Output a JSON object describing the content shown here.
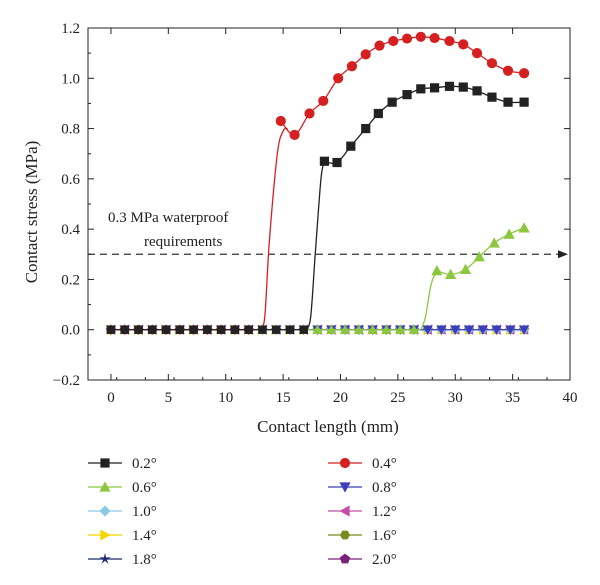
{
  "chart_data": {
    "type": "line",
    "xlabel": "Contact length (mm)",
    "ylabel": "Contact stress (MPa)",
    "xlim": [
      -2,
      40
    ],
    "ylim": [
      -0.2,
      1.2
    ],
    "xticks": [
      0,
      5,
      10,
      15,
      20,
      25,
      30,
      35,
      40
    ],
    "yticks": [
      -0.2,
      0.0,
      0.2,
      0.4,
      0.6,
      0.8,
      1.0,
      1.2
    ],
    "xtick_labels": [
      "0",
      "5",
      "10",
      "15",
      "20",
      "25",
      "30",
      "35",
      "40"
    ],
    "ytick_labels": [
      "−0.2",
      "0.0",
      "0.2",
      "0.4",
      "0.6",
      "0.8",
      "1.0",
      "1.2"
    ],
    "grid": false,
    "legend_position": "bottom",
    "threshold": {
      "y": 0.3,
      "label_line1": "0.3 MPa waterproof",
      "label_line2": "requirements",
      "style": "dashed-arrow"
    },
    "zero_x": [
      0,
      1.2,
      2.4,
      3.6,
      4.8,
      6,
      7.2,
      8.4,
      9.6,
      10.8,
      12,
      13.2,
      14.4,
      15.6,
      16.8,
      18,
      19.2,
      20.4,
      21.6,
      22.8,
      24,
      25.2,
      26.4,
      27.6,
      28.8,
      30,
      31.2,
      32.4,
      33.6,
      34.8,
      36
    ],
    "series": [
      {
        "name": "0.2°",
        "color": "#222222",
        "marker": "square",
        "zero_until": 17.0,
        "rise": [
          [
            17.0,
            0.0
          ],
          [
            17.4,
            0.05
          ],
          [
            17.8,
            0.3
          ],
          [
            18.3,
            0.6
          ],
          [
            18.6,
            0.67
          ]
        ],
        "points": [
          [
            18.6,
            0.67
          ],
          [
            19.7,
            0.665
          ],
          [
            20.9,
            0.73
          ],
          [
            22.2,
            0.8
          ],
          [
            23.3,
            0.86
          ],
          [
            24.5,
            0.905
          ],
          [
            25.8,
            0.935
          ],
          [
            27.0,
            0.958
          ],
          [
            28.2,
            0.962
          ],
          [
            29.5,
            0.968
          ],
          [
            30.7,
            0.965
          ],
          [
            31.9,
            0.95
          ],
          [
            33.2,
            0.925
          ],
          [
            34.6,
            0.905
          ],
          [
            36.0,
            0.905
          ]
        ]
      },
      {
        "name": "0.4°",
        "color": "#d42020",
        "marker": "circle",
        "zero_until": 13.0,
        "rise": [
          [
            13.0,
            0.0
          ],
          [
            13.4,
            0.05
          ],
          [
            13.8,
            0.35
          ],
          [
            14.5,
            0.7
          ],
          [
            15.0,
            0.79
          ],
          [
            15.4,
            0.8
          ]
        ],
        "points": [
          [
            14.8,
            0.83
          ],
          [
            16.0,
            0.775
          ],
          [
            17.3,
            0.86
          ],
          [
            18.5,
            0.91
          ],
          [
            19.8,
            1.0
          ],
          [
            21.0,
            1.048
          ],
          [
            22.2,
            1.095
          ],
          [
            23.4,
            1.13
          ],
          [
            24.6,
            1.148
          ],
          [
            25.8,
            1.158
          ],
          [
            27.0,
            1.165
          ],
          [
            28.2,
            1.16
          ],
          [
            29.5,
            1.148
          ],
          [
            30.7,
            1.135
          ],
          [
            31.9,
            1.1
          ],
          [
            33.2,
            1.06
          ],
          [
            34.6,
            1.03
          ],
          [
            36.0,
            1.02
          ]
        ]
      },
      {
        "name": "0.6°",
        "color": "#8cc63f",
        "marker": "triangle-up",
        "zero_until": 27.0,
        "rise": [
          [
            27.0,
            0.0
          ],
          [
            27.4,
            0.05
          ],
          [
            27.9,
            0.18
          ],
          [
            28.4,
            0.235
          ]
        ],
        "points": [
          [
            28.4,
            0.235
          ],
          [
            29.6,
            0.22
          ],
          [
            30.9,
            0.24
          ],
          [
            32.1,
            0.29
          ],
          [
            33.4,
            0.345
          ],
          [
            34.7,
            0.38
          ],
          [
            36.0,
            0.405
          ]
        ]
      },
      {
        "name": "0.8°",
        "color": "#3a3fb8",
        "marker": "triangle-down",
        "zero_until": 36.0
      },
      {
        "name": "1.0°",
        "color": "#8ecae6",
        "marker": "diamond",
        "zero_until": 36.0
      },
      {
        "name": "1.2°",
        "color": "#c34ea8",
        "marker": "triangle-left",
        "zero_until": 36.0
      },
      {
        "name": "1.4°",
        "color": "#f5d800",
        "marker": "triangle-right",
        "zero_until": 36.0
      },
      {
        "name": "1.6°",
        "color": "#7a8a1c",
        "marker": "hexagon",
        "zero_until": 36.0
      },
      {
        "name": "1.8°",
        "color": "#1f2a6e",
        "marker": "star",
        "zero_until": 36.0
      },
      {
        "name": "2.0°",
        "color": "#7a1f7a",
        "marker": "pentagon",
        "zero_until": 36.0
      }
    ]
  }
}
